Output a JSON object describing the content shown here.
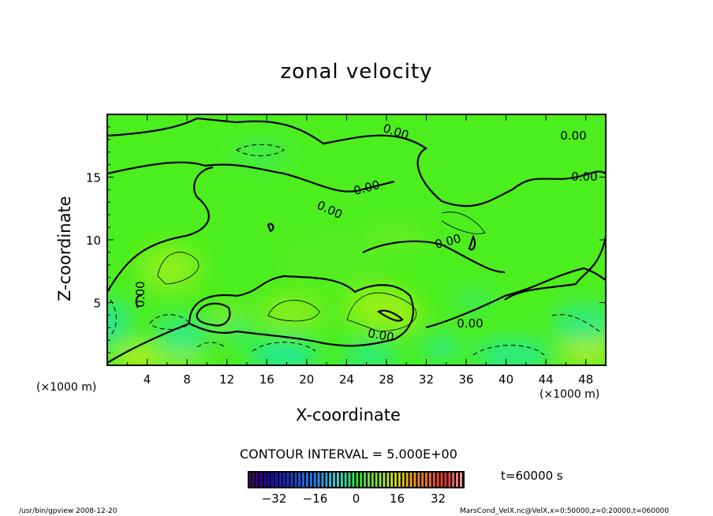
{
  "chart_data": {
    "type": "heatmap",
    "title": "zonal velocity",
    "xlabel": "X-coordinate",
    "ylabel": "Z-coordinate",
    "x_unit_label": "(×1000 m)",
    "y_unit_label": "(×1000 m)",
    "xlim": [
      0,
      50
    ],
    "ylim": [
      0,
      20
    ],
    "x_ticks": [
      "4",
      "8",
      "12",
      "16",
      "20",
      "24",
      "28",
      "32",
      "36",
      "40",
      "44",
      "48"
    ],
    "x_tick_values": [
      4,
      8,
      12,
      16,
      20,
      24,
      28,
      32,
      36,
      40,
      44,
      48
    ],
    "y_ticks": [
      "5",
      "10",
      "15"
    ],
    "y_tick_values": [
      5,
      10,
      15
    ],
    "contour_interval_text": "CONTOUR INTERVAL = 5.000E+00",
    "contour_labels": [
      "0.00",
      "0.00",
      "0.00",
      "0.00",
      "0.00",
      "0.00",
      "0.00",
      "0.00",
      "0.00"
    ],
    "colorbar": {
      "range": [
        -42,
        42
      ],
      "ticks": [
        "-32",
        "-16",
        "0",
        "16",
        "32"
      ],
      "tick_values": [
        -32,
        -16,
        0,
        16,
        32
      ]
    },
    "time_label": "t=60000 s"
  },
  "footer": {
    "left": "/usr/bin/gpview  2008-12-20",
    "right": "MarsCond_VelX.nc@VelX,x=0:50000,z=0:20000,t=060000"
  }
}
